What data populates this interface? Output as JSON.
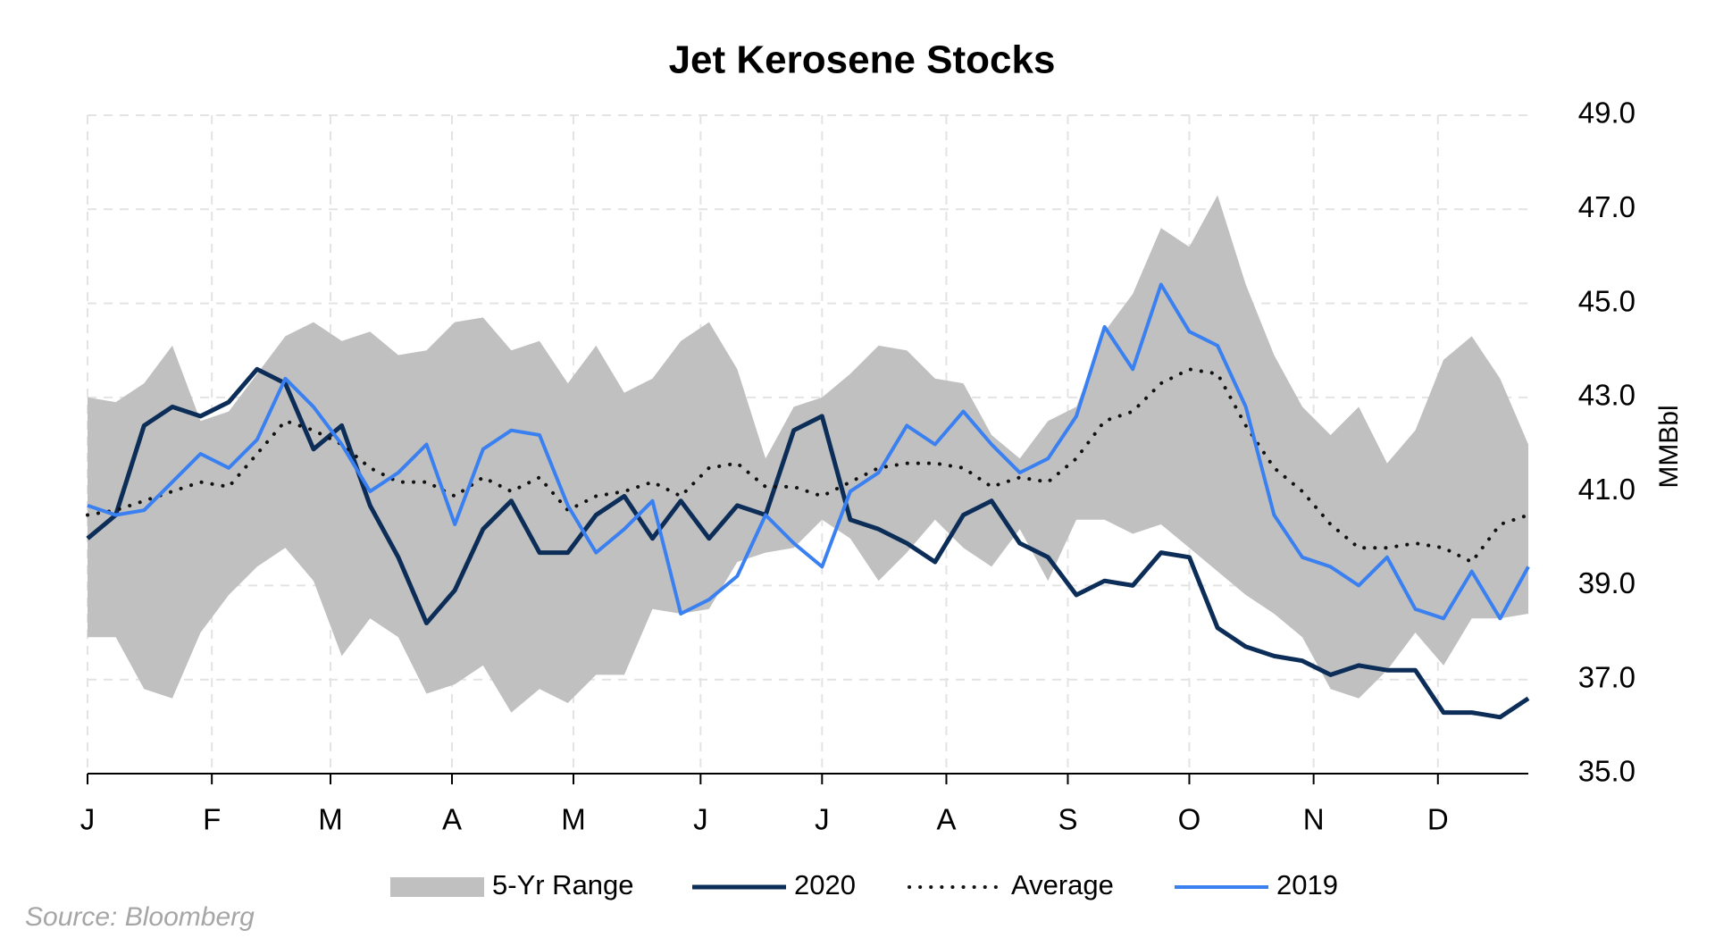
{
  "chart_data": {
    "type": "line",
    "title": "Jet Kerosene Stocks",
    "y_label": "MMBbl",
    "source": "Source: Bloomberg",
    "x": [
      0,
      1,
      2,
      3,
      4,
      5,
      6,
      7,
      8,
      9,
      10,
      11,
      12,
      13,
      14,
      15,
      16,
      17,
      18,
      19,
      20,
      21,
      22,
      23,
      24,
      25,
      26,
      27,
      28,
      29,
      30,
      31,
      32,
      33,
      34,
      35,
      36,
      37,
      38,
      39,
      40,
      41,
      42,
      43,
      44,
      45,
      46,
      47,
      48,
      49,
      50,
      51
    ],
    "xlim": [
      0,
      51
    ],
    "xticks": [
      {
        "value": 0,
        "label": "J"
      },
      {
        "value": 4.4,
        "label": "F"
      },
      {
        "value": 8.6,
        "label": "M"
      },
      {
        "value": 12.9,
        "label": "A"
      },
      {
        "value": 17.2,
        "label": "M"
      },
      {
        "value": 21.7,
        "label": "J"
      },
      {
        "value": 26,
        "label": "J"
      },
      {
        "value": 30.4,
        "label": "A"
      },
      {
        "value": 34.7,
        "label": "S"
      },
      {
        "value": 39,
        "label": "O"
      },
      {
        "value": 43.4,
        "label": "N"
      },
      {
        "value": 47.8,
        "label": "D"
      }
    ],
    "ylim": [
      35,
      49
    ],
    "yticks": [
      {
        "value": 35,
        "label": "35.0"
      },
      {
        "value": 37,
        "label": "37.0"
      },
      {
        "value": 39,
        "label": "39.0"
      },
      {
        "value": 41,
        "label": "41.0"
      },
      {
        "value": 43,
        "label": "43.0"
      },
      {
        "value": 45,
        "label": "45.0"
      },
      {
        "value": 47,
        "label": "47.0"
      },
      {
        "value": 49,
        "label": "49.0"
      }
    ],
    "y_axis_side": "right",
    "grid": true,
    "legend": "bottom",
    "series": [
      {
        "name": "5-Yr Range",
        "type": "range",
        "color": "#c0c0c0",
        "high": [
          43.0,
          42.9,
          43.3,
          44.1,
          42.5,
          42.7,
          43.5,
          44.3,
          44.6,
          44.2,
          44.4,
          43.9,
          44.0,
          44.6,
          44.7,
          44.0,
          44.2,
          43.3,
          44.1,
          43.1,
          43.4,
          44.2,
          44.6,
          43.6,
          41.7,
          42.8,
          43.0,
          43.5,
          44.1,
          44.0,
          43.4,
          43.3,
          42.2,
          41.7,
          42.5,
          42.8,
          44.4,
          45.2,
          46.6,
          46.2,
          47.3,
          45.4,
          43.9,
          42.8,
          42.2,
          42.8,
          41.6,
          42.3,
          43.8,
          44.3,
          43.4,
          42.0
        ],
        "low": [
          37.9,
          37.9,
          36.8,
          36.6,
          38.0,
          38.8,
          39.4,
          39.8,
          39.1,
          37.5,
          38.3,
          37.9,
          36.7,
          36.9,
          37.3,
          36.3,
          36.8,
          36.5,
          37.1,
          37.1,
          38.5,
          38.4,
          38.5,
          39.5,
          39.7,
          39.8,
          40.4,
          40.0,
          39.1,
          39.7,
          40.4,
          39.8,
          39.4,
          40.2,
          39.1,
          40.4,
          40.4,
          40.1,
          40.3,
          39.8,
          39.3,
          38.8,
          38.4,
          37.9,
          36.8,
          36.6,
          37.2,
          38.0,
          37.3,
          38.3,
          38.3,
          38.4
        ]
      },
      {
        "name": "2020",
        "color": "#0b2d57",
        "width": 5,
        "dash": "solid",
        "values": [
          40.0,
          40.5,
          42.4,
          42.8,
          42.6,
          42.9,
          43.6,
          43.3,
          41.9,
          42.4,
          40.7,
          39.6,
          38.2,
          38.9,
          40.2,
          40.8,
          39.7,
          39.7,
          40.5,
          40.9,
          40.0,
          40.8,
          40.0,
          40.7,
          40.5,
          42.3,
          42.6,
          40.4,
          40.2,
          39.9,
          39.5,
          40.5,
          40.8,
          39.9,
          39.6,
          38.8,
          39.1,
          39.0,
          39.7,
          39.6,
          38.1,
          37.7,
          37.5,
          37.4,
          37.1,
          37.3,
          37.2,
          37.2,
          36.3,
          36.3,
          36.2,
          36.6
        ]
      },
      {
        "name": "Average",
        "color": "#111111",
        "width": 4,
        "dash": "dotted",
        "values": [
          40.5,
          40.6,
          40.8,
          41.0,
          41.2,
          41.1,
          41.8,
          42.5,
          42.3,
          42.0,
          41.5,
          41.2,
          41.2,
          40.9,
          41.3,
          41.0,
          41.3,
          40.6,
          40.9,
          41.0,
          41.2,
          40.9,
          41.5,
          41.6,
          41.1,
          41.1,
          40.9,
          41.2,
          41.5,
          41.6,
          41.6,
          41.5,
          41.1,
          41.3,
          41.2,
          41.7,
          42.5,
          42.7,
          43.3,
          43.6,
          43.5,
          42.4,
          41.5,
          41.0,
          40.3,
          39.8,
          39.8,
          39.9,
          39.8,
          39.5,
          40.3,
          40.5
        ]
      },
      {
        "name": "2019",
        "color": "#3a80f0",
        "width": 4,
        "dash": "solid",
        "values": [
          40.7,
          40.5,
          40.6,
          41.2,
          41.8,
          41.5,
          42.1,
          43.4,
          42.8,
          42.0,
          41.0,
          41.4,
          42.0,
          40.3,
          41.9,
          42.3,
          42.2,
          40.7,
          39.7,
          40.2,
          40.8,
          38.4,
          38.7,
          39.2,
          40.5,
          39.9,
          39.4,
          41.0,
          41.4,
          42.4,
          42.0,
          42.7,
          42.0,
          41.4,
          41.7,
          42.6,
          44.5,
          43.6,
          45.4,
          44.4,
          44.1,
          42.8,
          40.5,
          39.6,
          39.4,
          39.0,
          39.6,
          38.5,
          38.3,
          39.3,
          38.3,
          39.4
        ]
      }
    ]
  }
}
